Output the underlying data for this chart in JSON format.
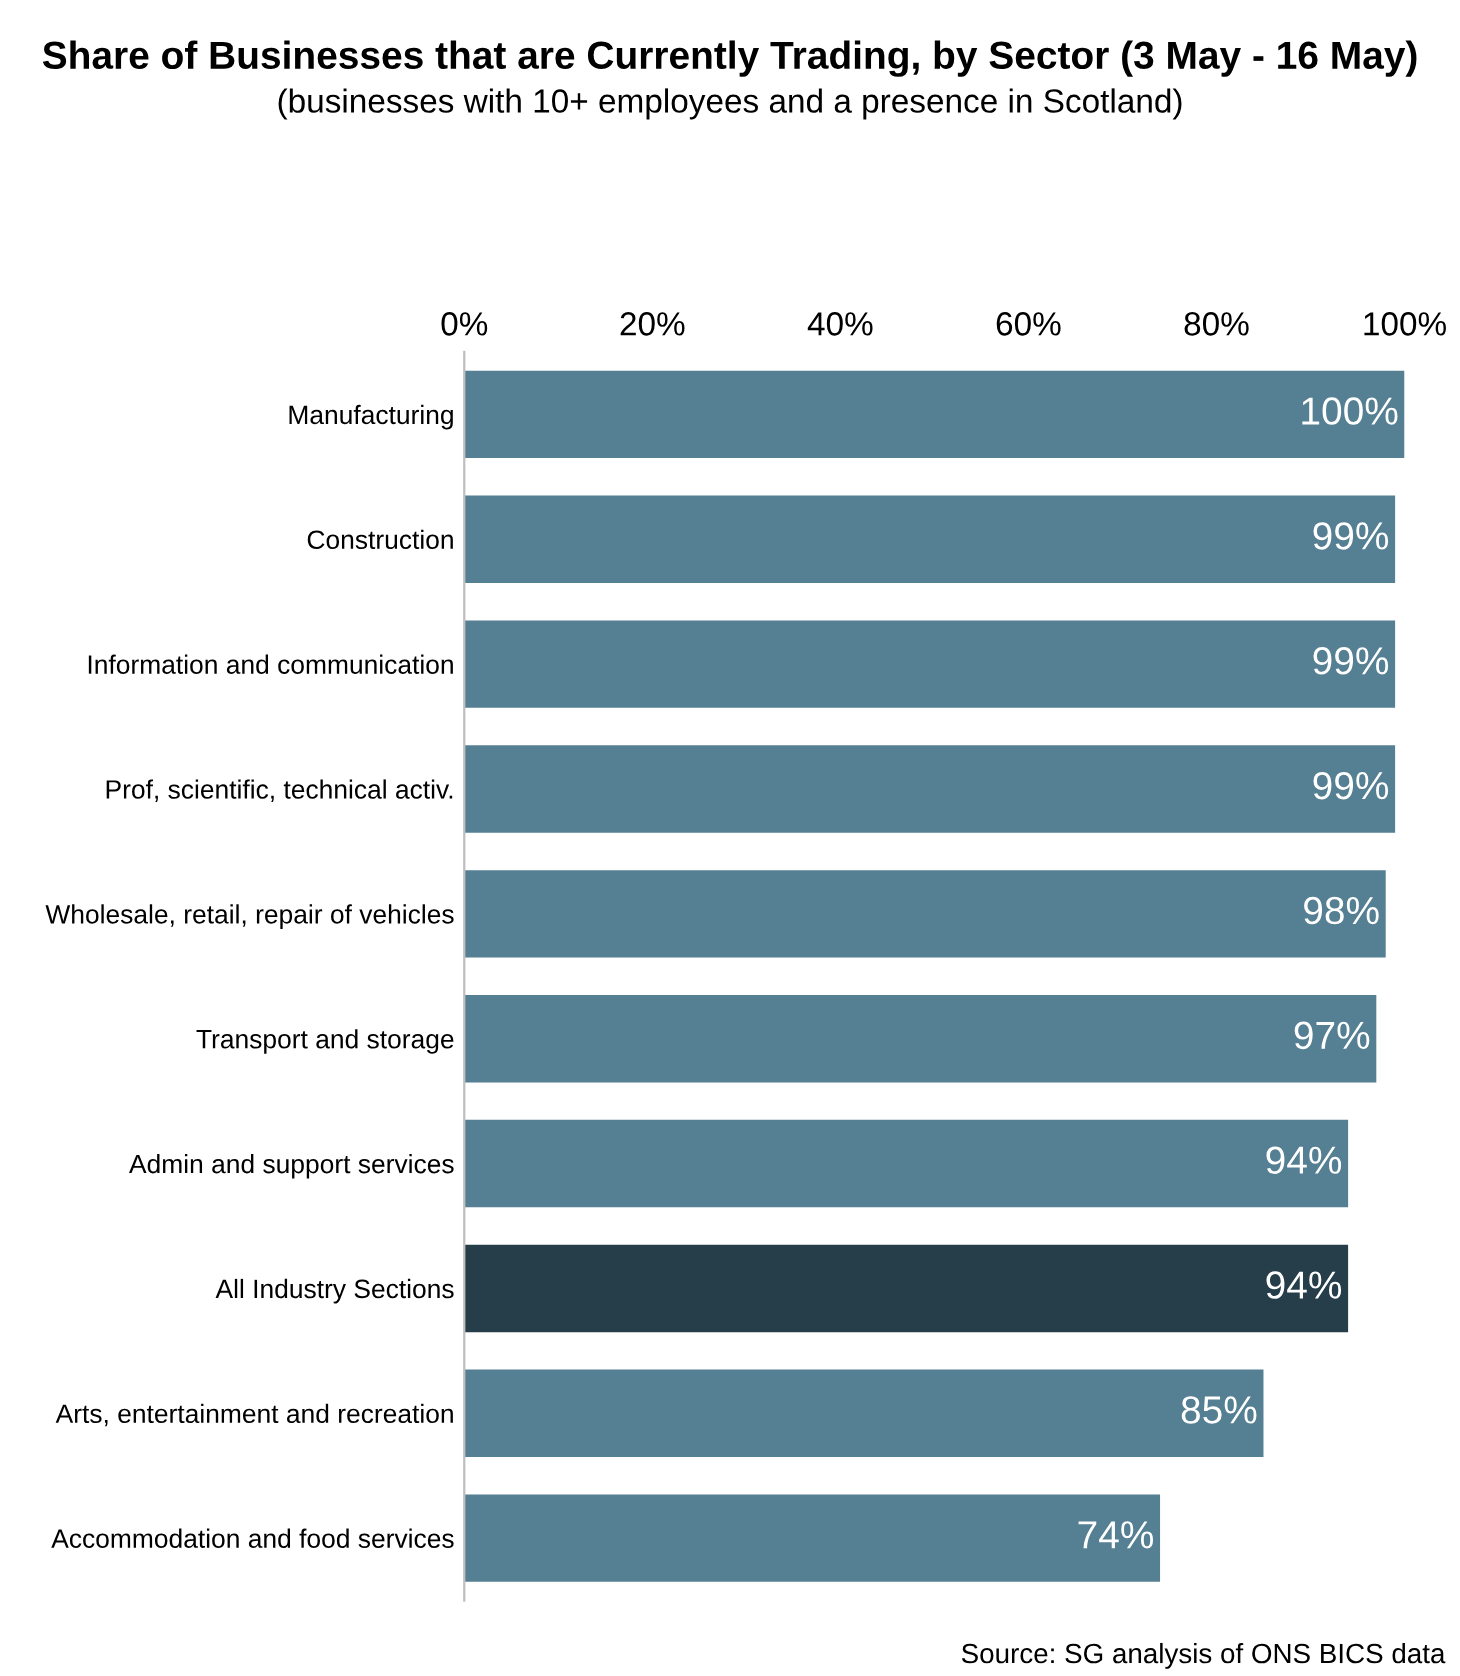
{
  "chart_data": {
    "type": "bar",
    "orientation": "horizontal",
    "title": "Share of Businesses that are Currently Trading, by Sector (3 May - 16 May)",
    "subtitle": "(businesses with 10+ employees and a presence in Scotland)",
    "categories": [
      "Manufacturing",
      "Construction",
      "Information and communication",
      "Prof, scientific, technical activ.",
      "Wholesale, retail, repair of vehicles",
      "Transport and storage",
      "Admin and support services",
      "All Industry Sections",
      "Arts, entertainment and recreation",
      "Accommodation and food services"
    ],
    "values": [
      100,
      99,
      99,
      99,
      98,
      97,
      94,
      94,
      85,
      74
    ],
    "value_labels": [
      "100%",
      "99%",
      "99%",
      "99%",
      "98%",
      "97%",
      "94%",
      "94%",
      "85%",
      "74%"
    ],
    "colors": [
      "#557f93",
      "#557f93",
      "#557f93",
      "#557f93",
      "#557f93",
      "#557f93",
      "#557f93",
      "#263e4a",
      "#557f93",
      "#557f93"
    ],
    "xlim": [
      0,
      100
    ],
    "xticks": [
      {
        "value": 0,
        "label": "0%"
      },
      {
        "value": 20,
        "label": "20%"
      },
      {
        "value": 40,
        "label": "40%"
      },
      {
        "value": 60,
        "label": "60%"
      },
      {
        "value": 80,
        "label": "80%"
      },
      {
        "value": 100,
        "label": "100%"
      }
    ],
    "grid": false,
    "legend": false,
    "annotations": [
      "Source: SG analysis of ONS BICS data"
    ]
  }
}
